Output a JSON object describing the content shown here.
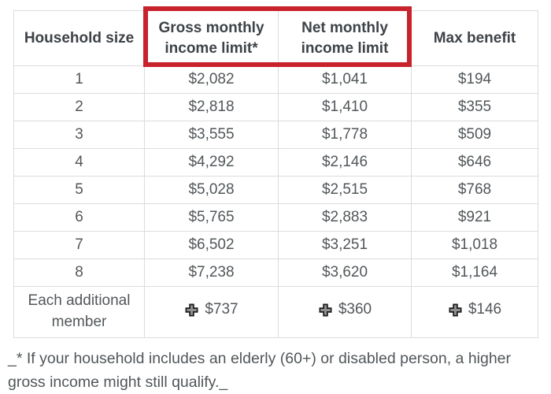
{
  "colors": {
    "highlight_red": "#c8232d",
    "table_border": "#dcdcdc",
    "header_text": "#3e4347",
    "cell_text": "#52575a",
    "plus_icon_fill": "#8f8f8f",
    "plus_icon_outline": "#1c1c1c"
  },
  "highlighted_columns": [
    "Gross monthly income limit*",
    "Net monthly income limit"
  ],
  "footnote": "_* If your household includes an elderly (60+) or disabled person, a higher gross income might still qualify._",
  "chart_data": {
    "type": "table",
    "columns": [
      "Household size",
      "Gross monthly income limit*",
      "Net monthly income limit",
      "Max benefit"
    ],
    "rows": [
      [
        "1",
        "$2,082",
        "$1,041",
        "$194"
      ],
      [
        "2",
        "$2,818",
        "$1,410",
        "$355"
      ],
      [
        "3",
        "$3,555",
        "$1,778",
        "$509"
      ],
      [
        "4",
        "$4,292",
        "$2,146",
        "$646"
      ],
      [
        "5",
        "$5,028",
        "$2,515",
        "$768"
      ],
      [
        "6",
        "$5,765",
        "$2,883",
        "$921"
      ],
      [
        "7",
        "$6,502",
        "$3,251",
        "$1,018"
      ],
      [
        "8",
        "$7,238",
        "$3,620",
        "$1,164"
      ]
    ],
    "additional_member": {
      "label": "Each additional member",
      "icon": "plus-icon",
      "values": [
        "$737",
        "$360",
        "$146"
      ]
    }
  }
}
